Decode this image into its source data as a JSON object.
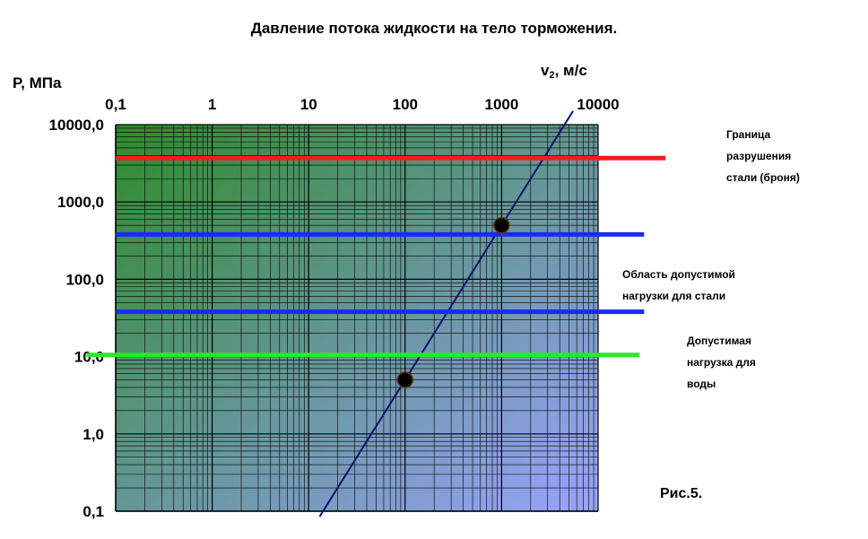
{
  "chart_data": {
    "type": "line",
    "title": "Давление потока жидкости на тело торможения.",
    "xlabel": {
      "main": "v",
      "sub": "2",
      "rest": ", м/с"
    },
    "ylabel": "P, МПа",
    "x_scale": "log",
    "y_scale": "log",
    "xlim": [
      0.1,
      10000
    ],
    "ylim": [
      0.1,
      10000
    ],
    "x_tick_labels": [
      "0,1",
      "1",
      "10",
      "100",
      "1000",
      "10000"
    ],
    "y_tick_labels": [
      "10000,0",
      "1000,0",
      "100,0",
      "10,0",
      "1,0",
      "0,1"
    ],
    "grid": true,
    "background_gradient": [
      "#2e8a2a",
      "#9aa2ff"
    ],
    "series": [
      {
        "kind": "curve",
        "color": "#10106e",
        "x": [
          13,
          100,
          1000,
          5500
        ],
        "y": [
          0.085,
          5,
          500,
          15000
        ]
      },
      {
        "kind": "points",
        "color": "#000000",
        "x": [
          100,
          1000
        ],
        "y": [
          5,
          500
        ]
      }
    ],
    "reference_lines": [
      {
        "y": 3700,
        "color": "#ff1a1a",
        "x_start": 0.1,
        "x_end": 50000
      },
      {
        "y": 380,
        "color": "#1a2aff",
        "x_start": 0.1,
        "x_end": 30000
      },
      {
        "y": 38,
        "color": "#1a2aff",
        "x_start": 0.1,
        "x_end": 30000
      },
      {
        "y": 10.5,
        "color": "#22ee22",
        "x_start": 0.05,
        "x_end": 27000
      }
    ],
    "annotations": {
      "steel_limit": [
        "Граница",
        "разрушения",
        "стали (броня)"
      ],
      "steel_load": [
        "Область допустимой",
        "нагрузки для стали"
      ],
      "water_load": [
        "Допустимая",
        "нагрузка для",
        "воды"
      ]
    },
    "caption": "Рис.5."
  }
}
